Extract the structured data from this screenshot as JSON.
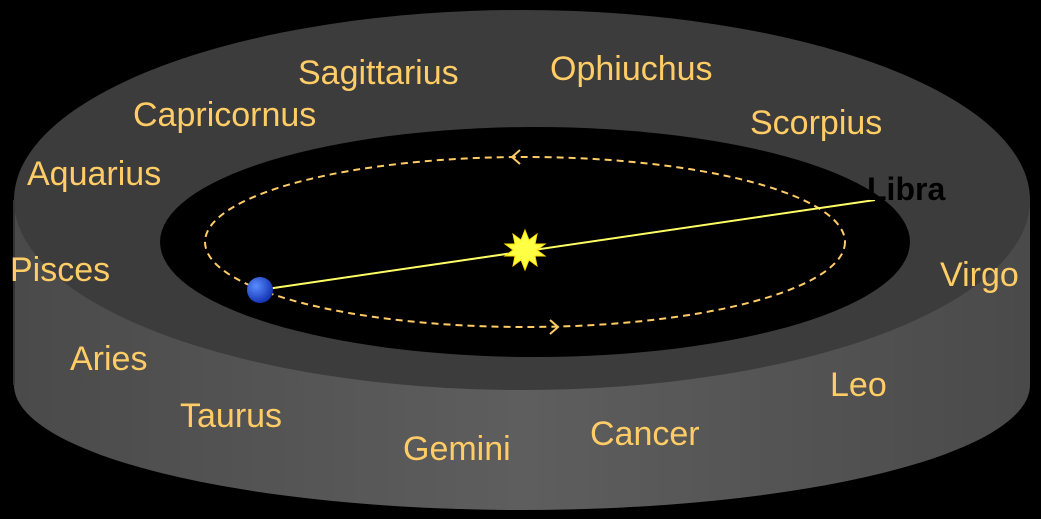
{
  "constellations": [
    "Sagittarius",
    "Ophiuchus",
    "Capricornus",
    "Scorpius",
    "Aquarius",
    "Libra",
    "Pisces",
    "Virgo",
    "Aries",
    "Leo",
    "Taurus",
    "Cancer",
    "Gemini"
  ]
}
